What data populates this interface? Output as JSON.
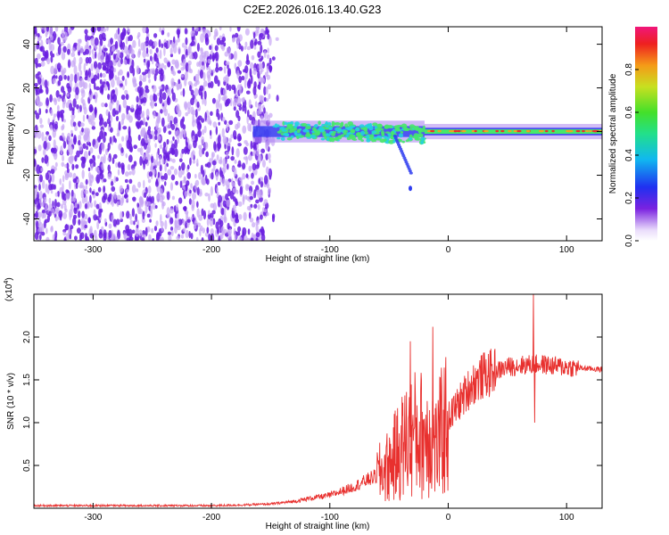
{
  "figure": {
    "title": "C2E2.2026.016.13.40.G23"
  },
  "chart_data": [
    {
      "type": "heatmap",
      "xlabel": "Height of straight line (km)",
      "ylabel": "Frequency (Hz)",
      "xlim": [
        -350,
        130
      ],
      "ylim": [
        -50,
        48
      ],
      "xticks": [
        -300,
        -200,
        -100,
        0,
        100
      ],
      "yticks": [
        -40,
        -20,
        0,
        20,
        40
      ],
      "colorbar": {
        "label": "Normalized spectral amplitude",
        "range": [
          0,
          1
        ],
        "ticks": [
          0.0,
          0.2,
          0.4,
          0.6,
          0.8
        ],
        "tick_labels": [
          "0.0",
          "0.2",
          "0.4",
          "0.6",
          "0.8"
        ]
      },
      "colors": {
        "noise_dark": "#6a1ee0",
        "noise_light": "#c7a6f5",
        "band_outer": "#a77cf0",
        "band_mid": "#2e3cf0",
        "band_core_green": "#46e86a",
        "band_core_cyan": "#22d2e0",
        "band_peak_red": "#ee2a2a",
        "band_peak_orange": "#f5a020"
      },
      "grid": false
    },
    {
      "type": "line",
      "xlabel": "Height of straight line (km)",
      "ylabel": "SNR (10 * v/v)",
      "y_scale_label": "(x10",
      "y_scale_exponent": "4",
      "y_scale_suffix": ")",
      "xlim": [
        -350,
        130
      ],
      "ylim": [
        0,
        2.5
      ],
      "xticks": [
        -300,
        -200,
        -100,
        0,
        100
      ],
      "yticks": [
        0.5,
        1.0,
        1.5,
        2.0
      ],
      "ytick_labels": [
        "0.5",
        "1.0",
        "1.5",
        "2.0"
      ],
      "line_color": "#e8302e",
      "grid": false,
      "series": [
        {
          "x": [
            -350,
            -300,
            -250,
            -200,
            -170,
            -150,
            -130,
            -115,
            -100,
            -90,
            -80,
            -70,
            -60,
            -50,
            -45,
            -40,
            -35,
            -30,
            -25,
            -20,
            -15,
            -10,
            -5,
            0,
            10,
            20,
            30,
            40,
            50,
            60,
            70,
            80,
            90,
            100,
            110,
            120,
            130
          ],
          "y": [
            0.03,
            0.03,
            0.03,
            0.03,
            0.04,
            0.05,
            0.08,
            0.12,
            0.15,
            0.2,
            0.25,
            0.32,
            0.38,
            0.5,
            0.6,
            0.7,
            0.8,
            0.85,
            0.88,
            0.85,
            0.9,
            0.7,
            0.9,
            1.05,
            1.25,
            1.45,
            1.55,
            1.6,
            1.65,
            1.67,
            1.68,
            1.68,
            1.66,
            1.65,
            1.64,
            1.63,
            1.62
          ]
        }
      ],
      "annotations": [
        {
          "x": 72,
          "y": 2.5
        },
        {
          "x": 73,
          "y": 1.0
        },
        {
          "x": -13,
          "y": 2.12
        },
        {
          "x": -32,
          "y": 1.95
        }
      ]
    }
  ]
}
